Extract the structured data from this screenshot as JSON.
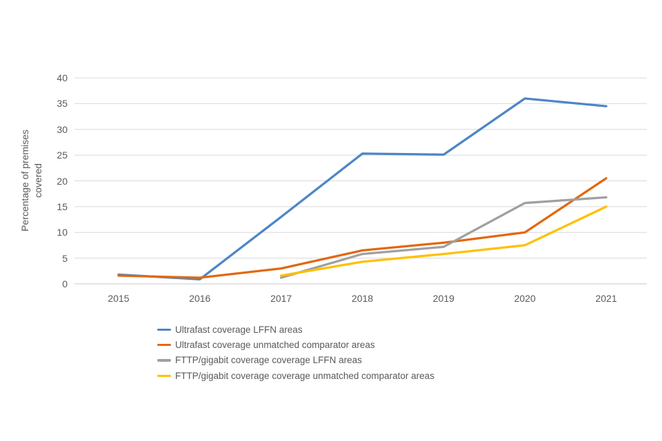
{
  "chart_data": {
    "type": "line",
    "title": "",
    "xlabel": "",
    "ylabel": "Percentage of premises covered",
    "ylabel_lines": [
      "Percentage of premises",
      "covered"
    ],
    "categories": [
      "2015",
      "2016",
      "2017",
      "2018",
      "2019",
      "2020",
      "2021"
    ],
    "y_ticks": [
      0,
      5,
      10,
      15,
      20,
      25,
      30,
      35,
      40
    ],
    "ylim": [
      0,
      40
    ],
    "grid": "horizontal",
    "legend_position": "bottom-left",
    "axis_text_color": "#595959",
    "gridline_color": "#D9D9D9",
    "baseline_color": "#C9C9C9",
    "series": [
      {
        "name": "Ultrafast coverage LFFN areas",
        "color": "#4E86C6",
        "values": [
          1.8,
          0.9,
          13,
          25.3,
          25.1,
          36,
          34.5
        ]
      },
      {
        "name": "Ultrafast coverage unmatched comparator areas",
        "color": "#E3670E",
        "values": [
          1.6,
          1.2,
          3,
          6.5,
          8,
          10,
          20.5
        ]
      },
      {
        "name": "FTTP/gigabit coverage coverage LFFN areas",
        "color": "#A0A0A0",
        "values": [
          null,
          null,
          1.2,
          5.8,
          7.2,
          15.7,
          16.8
        ]
      },
      {
        "name": "FTTP/gigabit coverage coverage unmatched comparator areas",
        "color": "#FFC000",
        "values": [
          null,
          null,
          1.6,
          4.3,
          5.8,
          7.5,
          15
        ]
      }
    ]
  }
}
